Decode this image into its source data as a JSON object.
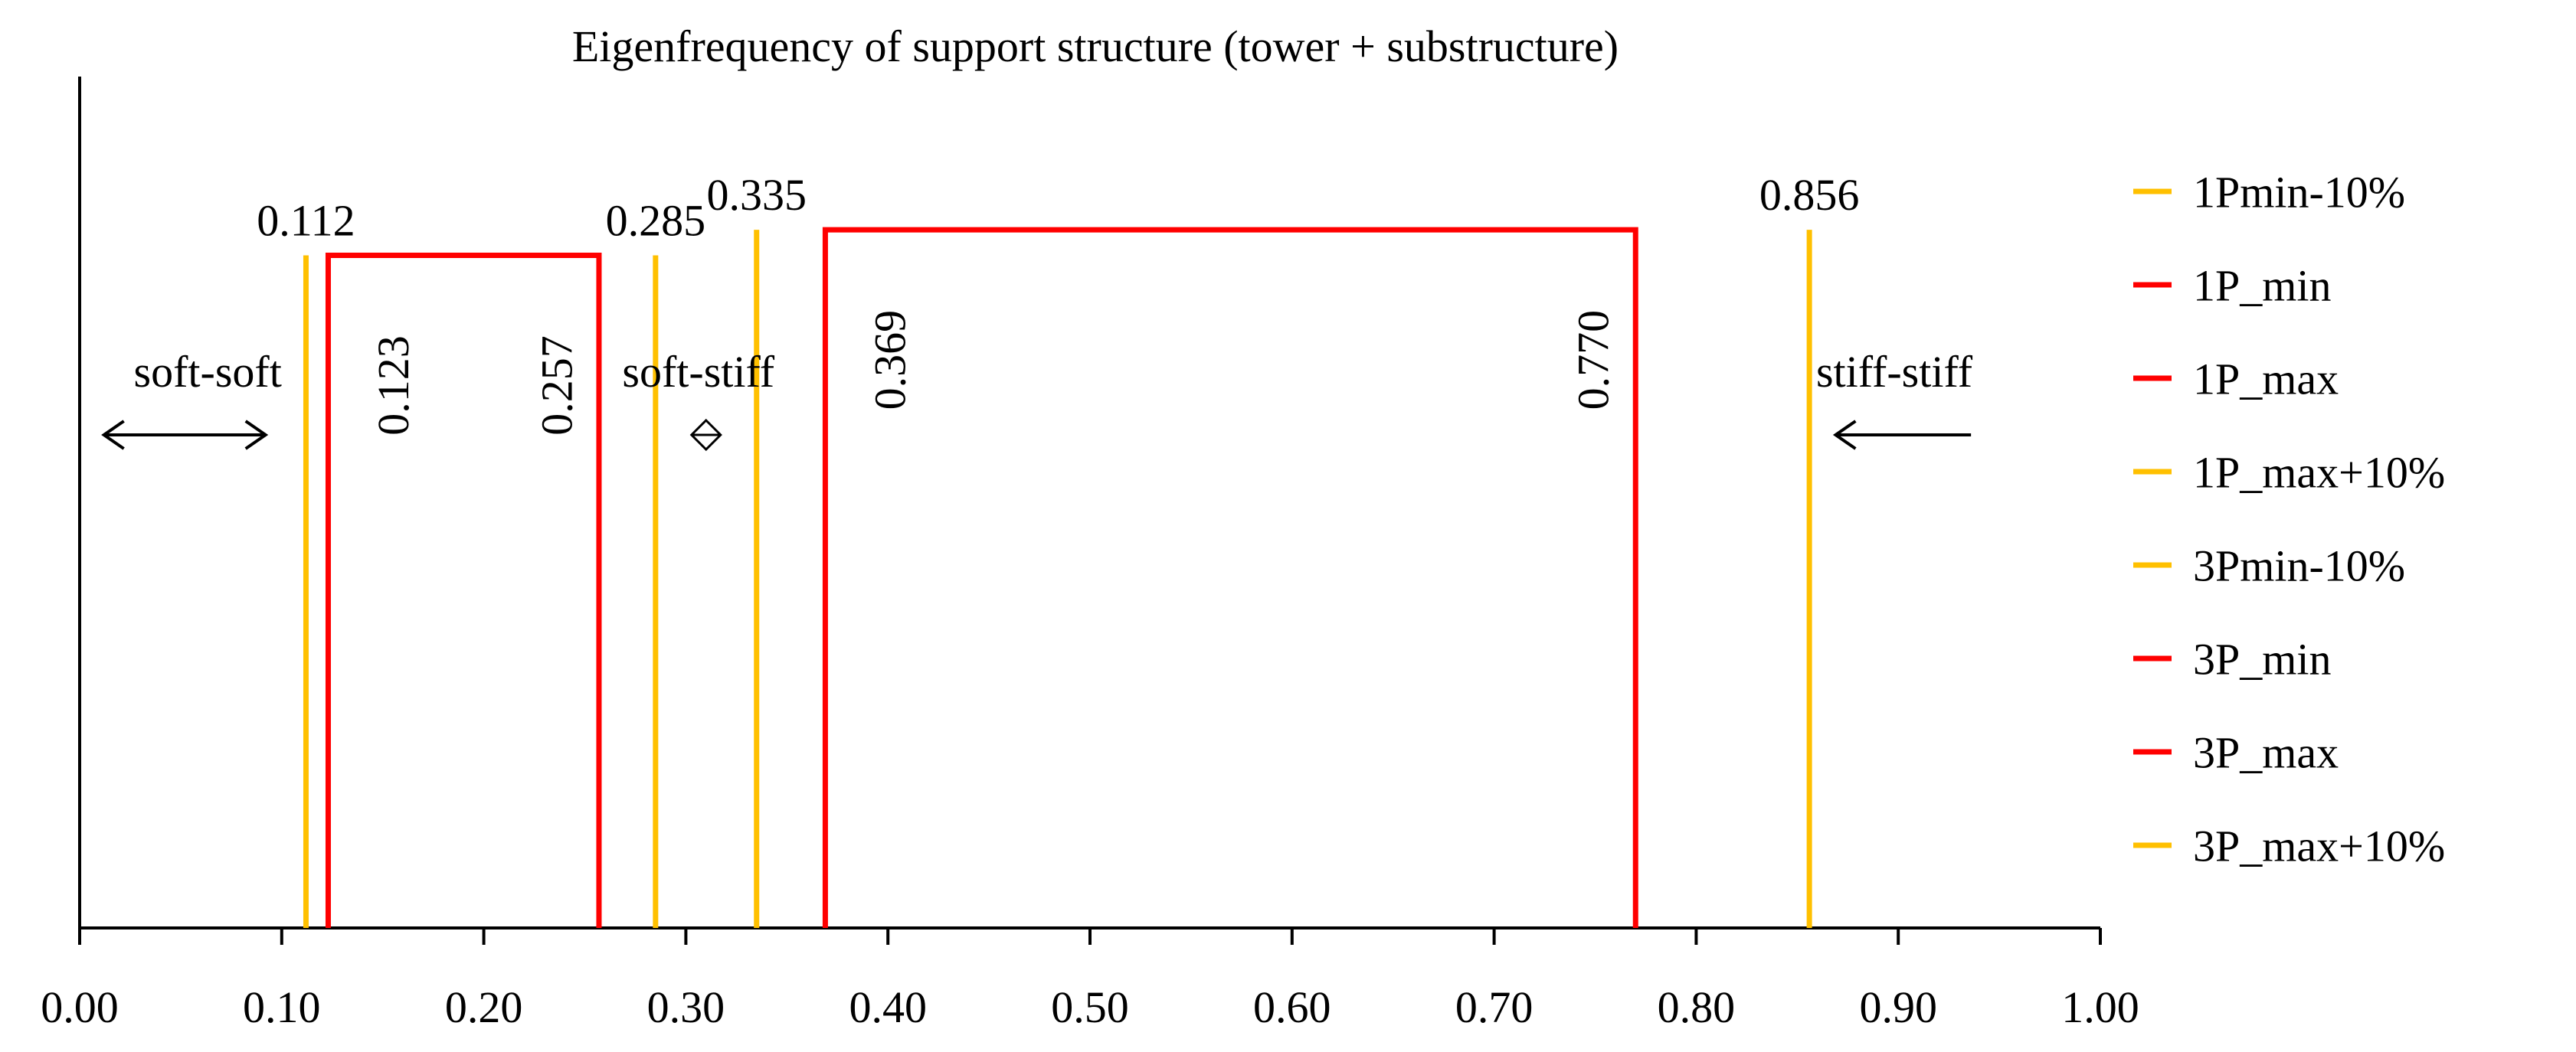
{
  "chart_data": {
    "type": "line",
    "title": "Eigenfrequency of support structure (tower + substructure)",
    "xlabel": "",
    "ylabel": "",
    "xlim": [
      0,
      1
    ],
    "x_ticks": [
      "0.00",
      "0.10",
      "0.20",
      "0.30",
      "0.40",
      "0.50",
      "0.60",
      "0.70",
      "0.80",
      "0.90",
      "1.00"
    ],
    "grid": false,
    "legend_position": "right",
    "colors": {
      "limit": "#FFC000",
      "band": "#FF0000",
      "axis": "#000000"
    },
    "vertical_lines": [
      {
        "name": "1Pmin-10%",
        "x": 0.112,
        "label": "0.112",
        "height": 0.79
      },
      {
        "name": "1P_max+10%",
        "x": 0.285,
        "label": "0.285",
        "height": 0.79
      },
      {
        "name": "3Pmin-10%",
        "x": 0.335,
        "label": "0.335",
        "height": 0.82
      },
      {
        "name": "3P_max+10%",
        "x": 0.856,
        "label": "0.856",
        "height": 0.82
      }
    ],
    "bands": [
      {
        "name": "1P",
        "x_min": 0.123,
        "x_max": 0.257,
        "label_min": "0.123",
        "label_max": "0.257",
        "height": 0.79
      },
      {
        "name": "3P",
        "x_min": 0.369,
        "x_max": 0.77,
        "label_min": "0.369",
        "label_max": "0.770",
        "height": 0.82
      }
    ],
    "regions": [
      {
        "label": "soft-soft",
        "x_from": 0.012,
        "x_to": 0.092,
        "arrow": "both"
      },
      {
        "label": "soft-stiff",
        "x_from": 0.31,
        "x_to": 0.31,
        "arrow": "diamond"
      },
      {
        "label": "stiff-stiff",
        "x_from": 0.936,
        "x_to": 0.869,
        "arrow": "left"
      }
    ],
    "legend": [
      {
        "label": "1Pmin-10%",
        "color": "#FFC000"
      },
      {
        "label": "1P_min",
        "color": "#FF0000"
      },
      {
        "label": "1P_max",
        "color": "#FF0000"
      },
      {
        "label": "1P_max+10%",
        "color": "#FFC000"
      },
      {
        "label": "3Pmin-10%",
        "color": "#FFC000"
      },
      {
        "label": "3P_min",
        "color": "#FF0000"
      },
      {
        "label": "3P_max",
        "color": "#FF0000"
      },
      {
        "label": "3P_max+10%",
        "color": "#FFC000"
      }
    ]
  }
}
